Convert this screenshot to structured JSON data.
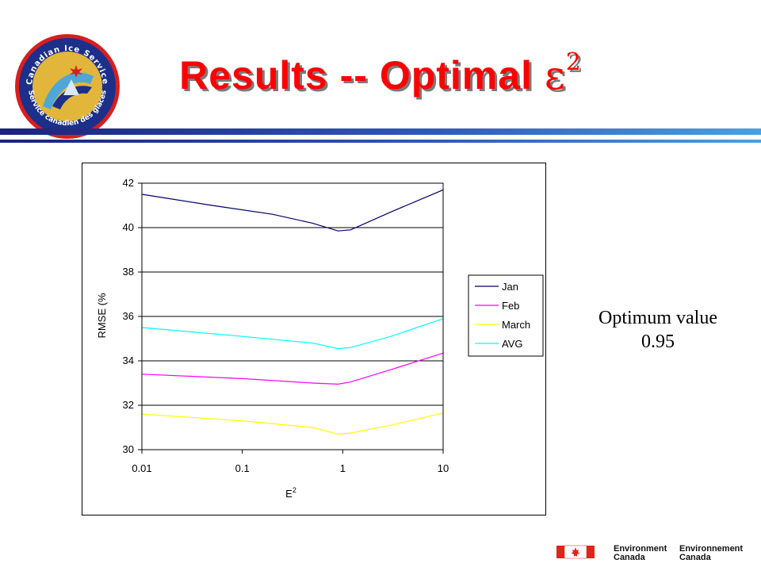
{
  "title": {
    "main": "Results -- Optimal ",
    "symbol": "ε",
    "exponent": "2"
  },
  "logo": {
    "text_top": "Canadian Ice Service",
    "text_bottom": "Service canadien des glaces",
    "colors": {
      "ring": "#1c2f8a",
      "gold": "#e2b63b",
      "red": "#d81e1e"
    }
  },
  "side_note": {
    "line1": "Optimum value",
    "line2": "0.95"
  },
  "footer": {
    "left_line1": "Environment",
    "left_line2": "Canada",
    "right_line1": "Environnement",
    "right_line2": "Canada",
    "flag_red": "#e2231a"
  },
  "chart_data": {
    "type": "line",
    "x_scale": "log",
    "x_ticks": [
      "0.01",
      "0.1",
      "1",
      "10"
    ],
    "x_tick_values": [
      0.01,
      0.1,
      1,
      10
    ],
    "xlim": [
      0.01,
      10
    ],
    "y_ticks": [
      "42",
      "40",
      "38",
      "36",
      "34",
      "32",
      "30"
    ],
    "ylim": [
      30,
      42
    ],
    "ylabel": "RMSE (%",
    "xlabel_base": "E",
    "xlabel_exp": "2",
    "grid": "horizontal",
    "legend_position": "right",
    "series": [
      {
        "name": "Jan",
        "color": "#000066",
        "x": [
          0.01,
          0.05,
          0.2,
          0.5,
          0.9,
          1.2,
          3,
          10
        ],
        "y": [
          41.5,
          41.0,
          40.6,
          40.2,
          39.85,
          39.9,
          40.7,
          41.7
        ]
      },
      {
        "name": "Feb",
        "color": "#ff00ff",
        "x": [
          0.01,
          0.1,
          0.5,
          0.9,
          1.2,
          3,
          10
        ],
        "y": [
          33.4,
          33.2,
          33.0,
          32.95,
          33.05,
          33.6,
          34.35
        ]
      },
      {
        "name": "March",
        "color": "#ffff00",
        "x": [
          0.01,
          0.1,
          0.5,
          0.9,
          1.2,
          3,
          10
        ],
        "y": [
          31.6,
          31.3,
          31.0,
          30.7,
          30.75,
          31.1,
          31.65
        ]
      },
      {
        "name": "AVG",
        "color": "#00ffff",
        "x": [
          0.01,
          0.1,
          0.5,
          0.9,
          1.2,
          3,
          10
        ],
        "y": [
          35.5,
          35.1,
          34.8,
          34.55,
          34.6,
          35.1,
          35.9
        ]
      }
    ]
  }
}
